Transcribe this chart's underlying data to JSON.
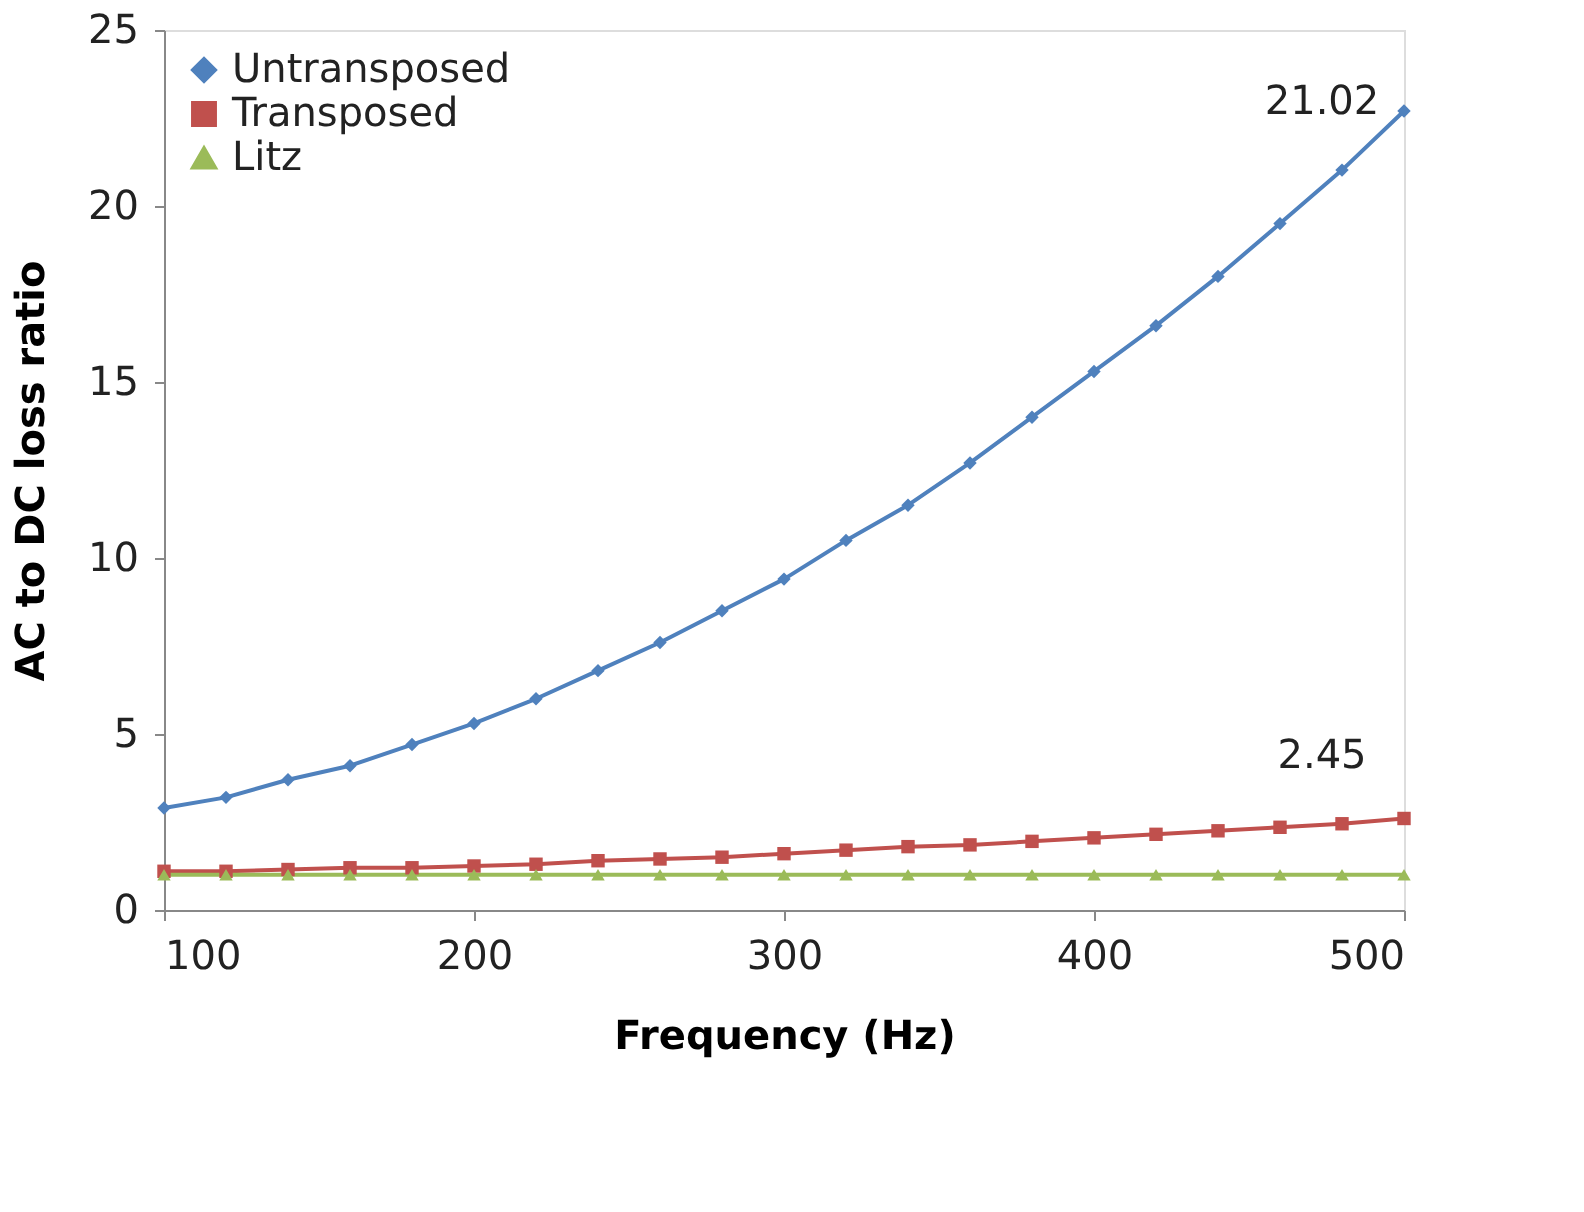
{
  "chart_data": {
    "type": "line",
    "xlabel": "Frequency (Hz)",
    "ylabel": "AC to DC loss ratio",
    "x": [
      100,
      120,
      140,
      160,
      180,
      200,
      220,
      240,
      260,
      280,
      300,
      320,
      340,
      360,
      380,
      400,
      420,
      440,
      460,
      480,
      500
    ],
    "series": [
      {
        "name": "Untransposed",
        "color": "#4f81bd",
        "marker": "diamond",
        "values": [
          2.9,
          3.2,
          3.7,
          4.1,
          4.7,
          5.3,
          6.0,
          6.8,
          7.6,
          8.5,
          9.4,
          10.5,
          11.5,
          12.7,
          14.0,
          15.3,
          16.6,
          18.0,
          19.5,
          21.02,
          22.7
        ]
      },
      {
        "name": "Transposed",
        "color": "#c0504d",
        "marker": "square",
        "values": [
          1.1,
          1.1,
          1.15,
          1.2,
          1.2,
          1.25,
          1.3,
          1.4,
          1.45,
          1.5,
          1.6,
          1.7,
          1.8,
          1.85,
          1.95,
          2.05,
          2.15,
          2.25,
          2.35,
          2.45,
          2.6
        ]
      },
      {
        "name": "Litz",
        "color": "#9bbb59",
        "marker": "triangle",
        "values": [
          1.0,
          1.0,
          1.0,
          1.0,
          1.0,
          1.0,
          1.0,
          1.0,
          1.0,
          1.0,
          1.0,
          1.0,
          1.0,
          1.0,
          1.0,
          1.0,
          1.0,
          1.0,
          1.0,
          1.0,
          1.0
        ]
      }
    ],
    "annotations": [
      {
        "text": "21.02",
        "x": 480,
        "y": 21.02
      },
      {
        "text": "2.45",
        "x": 480,
        "y": 2.45
      }
    ],
    "xlim": [
      100,
      500
    ],
    "xticks": [
      100,
      200,
      300,
      400,
      500
    ],
    "ylim": [
      0,
      25
    ],
    "yticks": [
      0,
      5,
      10,
      15,
      20,
      25
    ],
    "grid": false,
    "legend": "top left",
    "line_style": "solid"
  }
}
